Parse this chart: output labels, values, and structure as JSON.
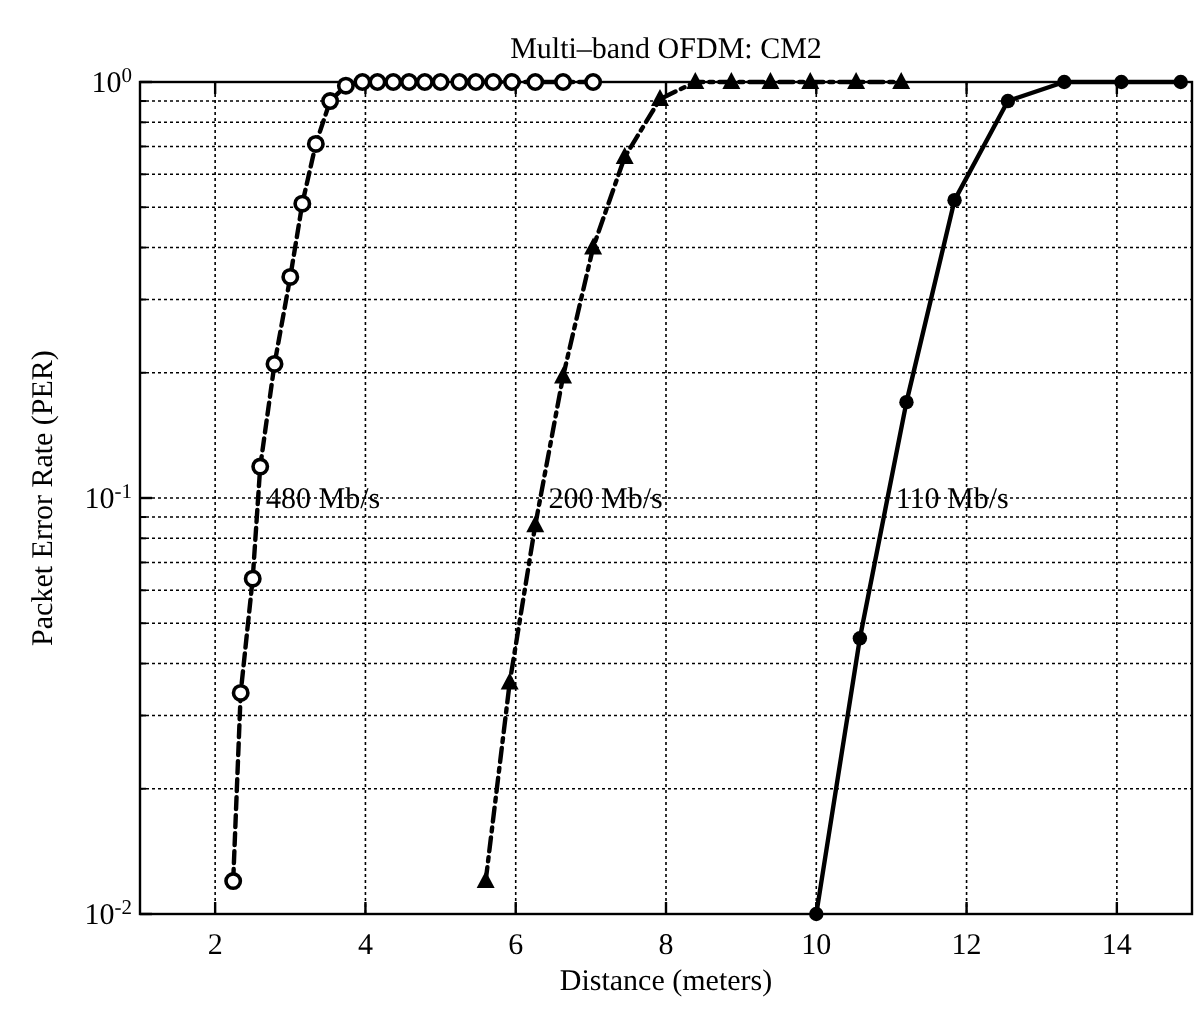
{
  "chart_data": {
    "type": "line",
    "title": "Multi–band OFDM: CM2",
    "xlabel": "Distance (meters)",
    "ylabel": "Packet Error Rate (PER)",
    "log": "y",
    "grid": true,
    "xlim": [
      1,
      15
    ],
    "xticks": [
      2,
      4,
      6,
      8,
      10,
      12,
      14
    ],
    "ylim": [
      0.01,
      1
    ],
    "yticks": [
      {
        "value": 0.01,
        "label": "10$^{-2}$"
      },
      {
        "value": 0.1,
        "label": "10$^{-1}$"
      },
      {
        "value": 1,
        "label": "10$^{0}$"
      }
    ],
    "series": [
      {
        "color": "#000000",
        "marker": "circle",
        "line_style": "dashed",
        "x": [
          2.24,
          2.34,
          2.5,
          2.6,
          2.79,
          3.0,
          3.16,
          3.34,
          3.53,
          3.74,
          3.96,
          4.16,
          4.37,
          4.58,
          4.79,
          5.0,
          5.25,
          5.47,
          5.7,
          5.95,
          6.26,
          6.63,
          7.03
        ],
        "values": [
          0.012,
          0.034,
          0.064,
          0.119,
          0.21,
          0.34,
          0.51,
          0.71,
          0.9,
          0.98,
          1,
          1,
          1,
          1,
          1,
          1,
          1,
          1,
          1,
          1,
          1,
          1,
          1
        ]
      },
      {
        "color": "#000000",
        "marker": "triangle",
        "line_style": "dashdot",
        "x": [
          5.6,
          5.92,
          6.26,
          6.63,
          7.03,
          7.45,
          7.92,
          8.39,
          8.87,
          9.39,
          9.92,
          10.53,
          11.13
        ],
        "values": [
          0.012,
          0.036,
          0.086,
          0.196,
          0.4,
          0.66,
          0.91,
          1,
          1,
          1,
          1,
          1,
          1
        ]
      },
      {
        "color": "#000000",
        "marker": "circle_filled",
        "line_style": "solid",
        "x": [
          10,
          10.58,
          11.2,
          11.84,
          12.55,
          13.3,
          14.06,
          14.85
        ],
        "values": [
          0.01,
          0.046,
          0.17,
          0.52,
          0.9,
          1,
          1,
          1
        ]
      }
    ],
    "annotations": [
      {
        "text": "480 Mb/s",
        "x": 2.57,
        "y": 0.1
      },
      {
        "text": "200 Mb/s",
        "x": 6.33,
        "y": 0.1
      },
      {
        "text": "110 Mb/s",
        "x": 10.95,
        "y": 0.1
      }
    ]
  }
}
